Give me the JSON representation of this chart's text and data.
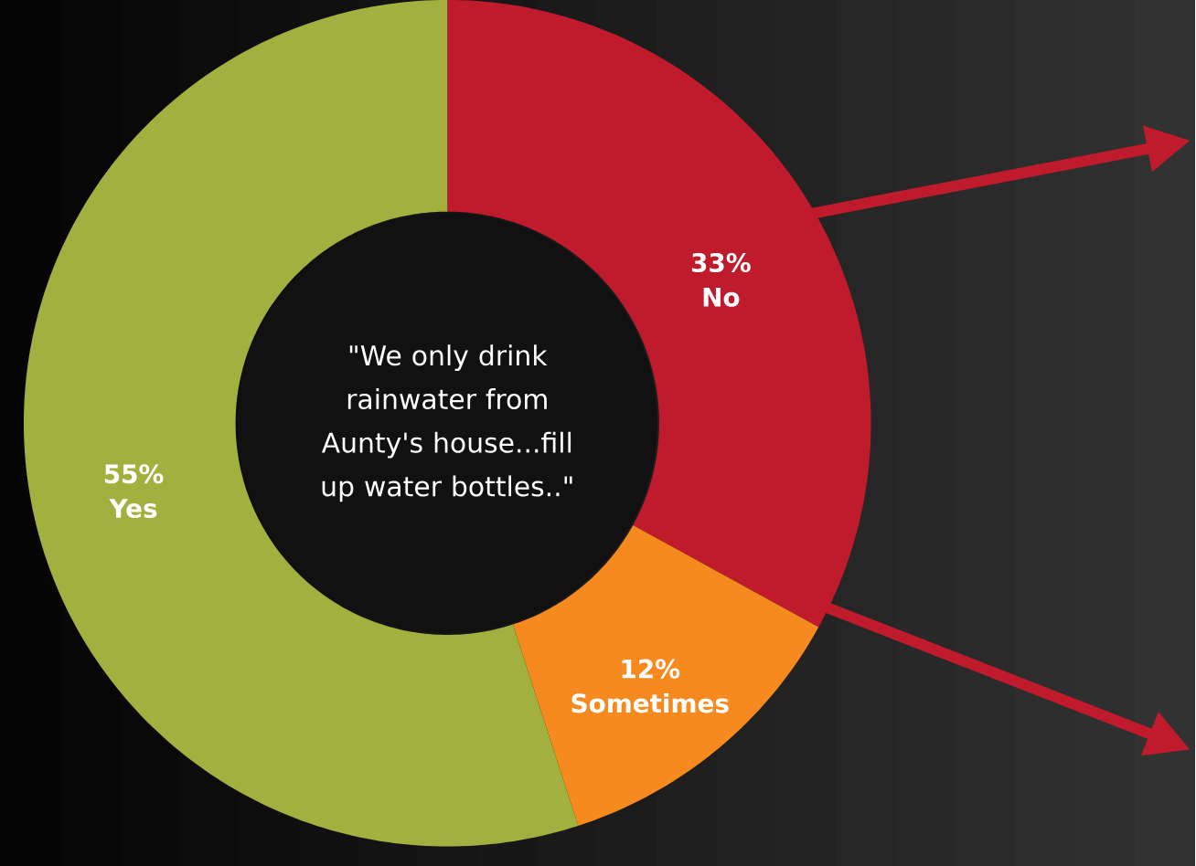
{
  "chart_data": {
    "type": "donut",
    "categories": [
      "No",
      "Sometimes",
      "Yes"
    ],
    "values": [
      33,
      12,
      55
    ],
    "value_labels": [
      "33%",
      "12%",
      "55%"
    ],
    "colors": [
      "#c01b2d",
      "#f68a1e",
      "#a2b03f"
    ],
    "annotations": [
      "\"We only drink rainwater from Aunty's house...fill up water bottles..\""
    ]
  }
}
